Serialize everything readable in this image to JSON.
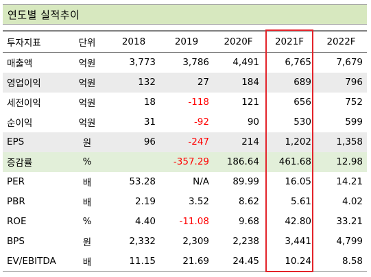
{
  "title": "연도별 실적추이",
  "headers": [
    "투자지표",
    "단위",
    "2018",
    "2019",
    "2020F",
    "2021F",
    "2022F"
  ],
  "rows": [
    {
      "label": "매출액",
      "unit": "억원",
      "values": [
        "3,773",
        "3,786",
        "4,491",
        "6,765",
        "7,679"
      ],
      "neg": [
        false,
        false,
        false,
        false,
        false
      ],
      "shade": "none"
    },
    {
      "label": "영업이익",
      "unit": "억원",
      "values": [
        "132",
        "27",
        "184",
        "689",
        "796"
      ],
      "neg": [
        false,
        false,
        false,
        false,
        false
      ],
      "shade": "gray"
    },
    {
      "label": "세전이익",
      "unit": "억원",
      "values": [
        "18",
        "-118",
        "121",
        "656",
        "752"
      ],
      "neg": [
        false,
        true,
        false,
        false,
        false
      ],
      "shade": "none"
    },
    {
      "label": "순이익",
      "unit": "억원",
      "values": [
        "31",
        "-92",
        "90",
        "530",
        "599"
      ],
      "neg": [
        false,
        true,
        false,
        false,
        false
      ],
      "shade": "none"
    },
    {
      "label": "EPS",
      "unit": "원",
      "values": [
        "96",
        "-247",
        "214",
        "1,202",
        "1,358"
      ],
      "neg": [
        false,
        true,
        false,
        false,
        false
      ],
      "shade": "gray"
    },
    {
      "label": "증감률",
      "unit": "%",
      "values": [
        "",
        "-357.29",
        "186.64",
        "461.68",
        "12.98"
      ],
      "neg": [
        false,
        true,
        false,
        false,
        false
      ],
      "shade": "green"
    },
    {
      "label": "PER",
      "unit": "배",
      "values": [
        "53.28",
        "N/A",
        "89.99",
        "16.05",
        "14.21"
      ],
      "neg": [
        false,
        false,
        false,
        false,
        false
      ],
      "shade": "none"
    },
    {
      "label": "PBR",
      "unit": "배",
      "values": [
        "2.19",
        "3.52",
        "8.62",
        "5.61",
        "4.02"
      ],
      "neg": [
        false,
        false,
        false,
        false,
        false
      ],
      "shade": "none"
    },
    {
      "label": "ROE",
      "unit": "%",
      "values": [
        "4.40",
        "-11.08",
        "9.68",
        "42.80",
        "33.21"
      ],
      "neg": [
        false,
        true,
        false,
        false,
        false
      ],
      "shade": "none"
    },
    {
      "label": "BPS",
      "unit": "원",
      "values": [
        "2,332",
        "2,309",
        "2,238",
        "3,441",
        "4,799"
      ],
      "neg": [
        false,
        false,
        false,
        false,
        false
      ],
      "shade": "none"
    },
    {
      "label": "EV/EBITDA",
      "unit": "배",
      "values": [
        "11.15",
        "21.69",
        "24.45",
        "10.24",
        "8.58"
      ],
      "neg": [
        false,
        false,
        false,
        false,
        false
      ],
      "shade": "none"
    }
  ],
  "highlight_column": "2021F",
  "colors": {
    "title_bg": "#d7e8bf",
    "gray_row": "#ebebeb",
    "green_row": "#e2efd9",
    "negative": "#ff0000",
    "highlight": "#e3232a"
  }
}
